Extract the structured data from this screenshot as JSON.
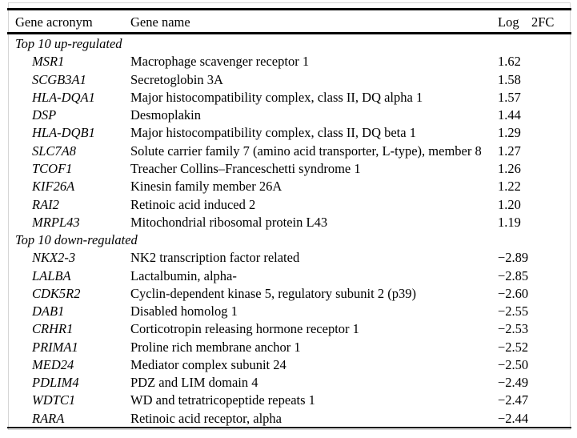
{
  "table": {
    "columns": [
      {
        "key": "acronym",
        "label": "Gene acronym"
      },
      {
        "key": "name",
        "label": "Gene name"
      },
      {
        "key": "log",
        "label": "Log"
      },
      {
        "key": "2fc",
        "label": "2FC"
      }
    ],
    "sections": [
      {
        "label": "Top 10 up-regulated",
        "rows": [
          {
            "acronym": "MSR1",
            "name": "Macrophage scavenger receptor 1",
            "log2fc": "1.62"
          },
          {
            "acronym": "SCGB3A1",
            "name": "Secretoglobin 3A",
            "log2fc": "1.58"
          },
          {
            "acronym": "HLA-DQA1",
            "name": "Major histocompatibility complex, class II, DQ alpha 1",
            "log2fc": "1.57"
          },
          {
            "acronym": "DSP",
            "name": "Desmoplakin",
            "log2fc": "1.44"
          },
          {
            "acronym": "HLA-DQB1",
            "name": "Major histocompatibility complex, class II, DQ beta 1",
            "log2fc": "1.29"
          },
          {
            "acronym": "SLC7A8",
            "name": "Solute carrier family 7 (amino acid transporter, L-type), member 8",
            "log2fc": "1.27"
          },
          {
            "acronym": "TCOF1",
            "name": "Treacher Collins–Franceschetti syndrome 1",
            "log2fc": "1.26"
          },
          {
            "acronym": "KIF26A",
            "name": "Kinesin family member 26A",
            "log2fc": "1.22"
          },
          {
            "acronym": "RAI2",
            "name": "Retinoic acid induced 2",
            "log2fc": "1.20"
          },
          {
            "acronym": "MRPL43",
            "name": "Mitochondrial ribosomal protein L43",
            "log2fc": "1.19"
          }
        ]
      },
      {
        "label": "Top 10 down-regulated",
        "rows": [
          {
            "acronym": "NKX2-3",
            "name": "NK2 transcription factor related",
            "log2fc": "−2.89"
          },
          {
            "acronym": "LALBA",
            "name": "Lactalbumin, alpha-",
            "log2fc": "−2.85"
          },
          {
            "acronym": "CDK5R2",
            "name": "Cyclin-dependent kinase 5, regulatory subunit 2 (p39)",
            "log2fc": "−2.60"
          },
          {
            "acronym": "DAB1",
            "name": "Disabled homolog 1",
            "log2fc": "−2.55"
          },
          {
            "acronym": "CRHR1",
            "name": "Corticotropin releasing hormone receptor 1",
            "log2fc": "−2.53"
          },
          {
            "acronym": "PRIMA1",
            "name": "Proline rich membrane anchor 1",
            "log2fc": "−2.52"
          },
          {
            "acronym": "MED24",
            "name": "Mediator complex subunit 24",
            "log2fc": "−2.50"
          },
          {
            "acronym": "PDLIM4",
            "name": "PDZ and LIM domain 4",
            "log2fc": "−2.49"
          },
          {
            "acronym": "WDTC1",
            "name": "WD and tetratricopeptide repeats 1",
            "log2fc": "−2.47"
          },
          {
            "acronym": "RARA",
            "name": "Retinoic acid receptor, alpha",
            "log2fc": "−2.44"
          }
        ]
      }
    ],
    "colors": {
      "rule": "#000000",
      "frame": "#d6d6d6",
      "text": "#000000",
      "background": "#ffffff"
    }
  }
}
